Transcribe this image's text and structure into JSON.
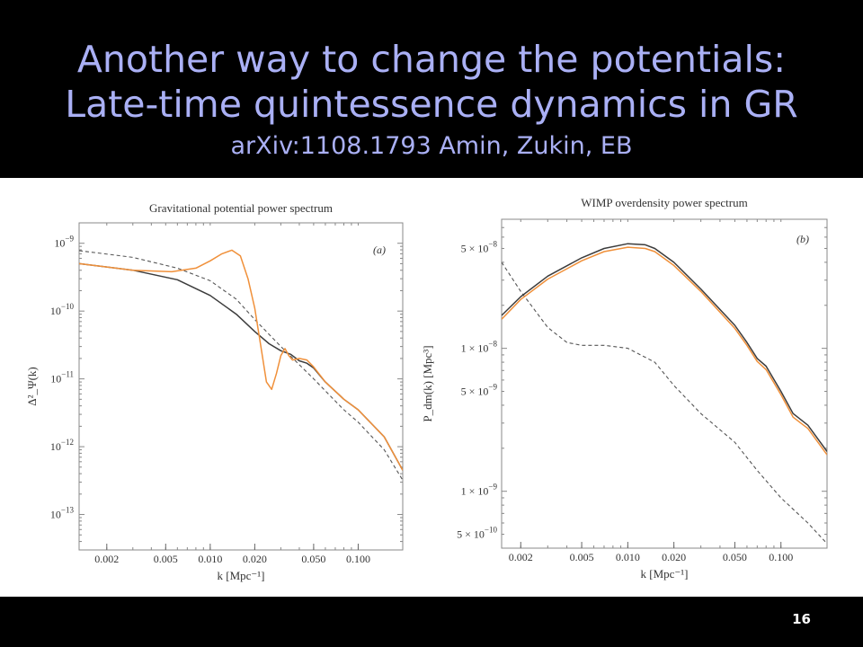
{
  "slide": {
    "title_line1": "Another way to change the potentials:",
    "title_line2": "Late-time quintessence dynamics in GR",
    "subtitle": "arXiv:1108.1793 Amin, Zukin, EB",
    "page_number": "16"
  },
  "colors": {
    "background": "#000000",
    "title": "#aab0f5",
    "orange": "#f0903a",
    "dark": "#3c3c3c"
  },
  "chart_data": [
    {
      "type": "line",
      "title": "Gravitational potential power spectrum",
      "panel_label": "(a)",
      "xlabel": "k [Mpc⁻¹]",
      "ylabel": "Δ²_Ψ(k)",
      "xscale": "log",
      "yscale": "log",
      "xlim": [
        0.0013,
        0.2
      ],
      "ylim": [
        3e-14,
        2e-09
      ],
      "xticks": [
        0.002,
        0.005,
        0.01,
        0.02,
        0.05,
        0.1
      ],
      "xtick_labels": [
        "0.002",
        "0.005",
        "0.010",
        "0.020",
        "0.050",
        "0.100"
      ],
      "yticks": [
        1e-09,
        1e-10,
        1e-11,
        1e-12,
        1e-13
      ],
      "ytick_labels": [
        {
          "base": "10",
          "exp": "−9"
        },
        {
          "base": "10",
          "exp": "−10"
        },
        {
          "base": "10",
          "exp": "−11"
        },
        {
          "base": "10",
          "exp": "−12"
        },
        {
          "base": "10",
          "exp": "−13"
        }
      ],
      "series": [
        {
          "style": "dashed",
          "color": "#555555",
          "x": [
            0.0013,
            0.003,
            0.006,
            0.01,
            0.015,
            0.02,
            0.03,
            0.05,
            0.08,
            0.1,
            0.15,
            0.2
          ],
          "y": [
            7.8e-10,
            6.2e-10,
            4.3e-10,
            2.8e-10,
            1.5e-10,
            7.5e-11,
            3e-11,
            1e-11,
            3.5e-12,
            2.3e-12,
            9e-13,
            3.2e-13
          ]
        },
        {
          "style": "solid",
          "color": "#3c3c3c",
          "x": [
            0.0013,
            0.003,
            0.006,
            0.01,
            0.015,
            0.02,
            0.025,
            0.03,
            0.035,
            0.04,
            0.045,
            0.05,
            0.06,
            0.08,
            0.1,
            0.15,
            0.2
          ],
          "y": [
            5e-10,
            4e-10,
            2.9e-10,
            1.7e-10,
            9e-11,
            5e-11,
            3.3e-11,
            2.6e-11,
            2.3e-11,
            1.85e-11,
            1.7e-11,
            1.45e-11,
            9e-12,
            5e-12,
            3.5e-12,
            1.4e-12,
            4.5e-13
          ]
        },
        {
          "style": "solid",
          "color": "#f0903a",
          "x": [
            0.0013,
            0.003,
            0.0055,
            0.008,
            0.01,
            0.012,
            0.014,
            0.016,
            0.018,
            0.02,
            0.022,
            0.024,
            0.026,
            0.028,
            0.03,
            0.032,
            0.034,
            0.036,
            0.04,
            0.045,
            0.05,
            0.06,
            0.08,
            0.1,
            0.15,
            0.2
          ],
          "y": [
            5e-10,
            4e-10,
            3.8e-10,
            4.3e-10,
            5.5e-10,
            7e-10,
            7.9e-10,
            6.5e-10,
            3e-10,
            1.1e-10,
            3e-11,
            9e-12,
            7e-12,
            1.2e-11,
            2.2e-11,
            2.8e-11,
            2.2e-11,
            1.9e-11,
            2e-11,
            1.9e-11,
            1.5e-11,
            9e-12,
            5e-12,
            3.5e-12,
            1.4e-12,
            4.5e-13
          ]
        }
      ]
    },
    {
      "type": "line",
      "title": "WIMP overdensity power spectrum",
      "panel_label": "(b)",
      "xlabel": "k [Mpc⁻¹]",
      "ylabel": "P_dm(k) [Mpc³]",
      "xscale": "log",
      "yscale": "log",
      "xlim": [
        0.0015,
        0.2
      ],
      "ylim": [
        4e-10,
        8e-08
      ],
      "xticks": [
        0.002,
        0.005,
        0.01,
        0.02,
        0.05,
        0.1
      ],
      "xtick_labels": [
        "0.002",
        "0.005",
        "0.010",
        "0.020",
        "0.050",
        "0.100"
      ],
      "yticks": [
        5e-08,
        1e-08,
        5e-09,
        1e-09,
        5e-10
      ],
      "ytick_labels": [
        {
          "base": "5 × 10",
          "exp": "−8"
        },
        {
          "base": "1 × 10",
          "exp": "−8"
        },
        {
          "base": "5 × 10",
          "exp": "−9"
        },
        {
          "base": "1 × 10",
          "exp": "−9"
        },
        {
          "base": "5 × 10",
          "exp": "−10"
        }
      ],
      "series": [
        {
          "style": "dashed",
          "color": "#555555",
          "x": [
            0.0015,
            0.002,
            0.003,
            0.004,
            0.005,
            0.007,
            0.01,
            0.015,
            0.02,
            0.03,
            0.05,
            0.07,
            0.1,
            0.15,
            0.2
          ],
          "y": [
            4e-08,
            2.5e-08,
            1.4e-08,
            1.1e-08,
            1.05e-08,
            1.05e-08,
            1e-08,
            8e-09,
            5.5e-09,
            3.5e-09,
            2.2e-09,
            1.4e-09,
            9e-10,
            6e-10,
            4.3e-10
          ]
        },
        {
          "style": "solid",
          "color": "#3c3c3c",
          "x": [
            0.0015,
            0.002,
            0.003,
            0.005,
            0.007,
            0.01,
            0.013,
            0.015,
            0.02,
            0.03,
            0.05,
            0.06,
            0.07,
            0.08,
            0.1,
            0.12,
            0.15,
            0.2
          ],
          "y": [
            1.7e-08,
            2.3e-08,
            3.2e-08,
            4.3e-08,
            5e-08,
            5.4e-08,
            5.3e-08,
            5e-08,
            4e-08,
            2.6e-08,
            1.45e-08,
            1.1e-08,
            8.5e-09,
            7.5e-09,
            5e-09,
            3.5e-09,
            2.9e-09,
            1.9e-09
          ]
        },
        {
          "style": "solid",
          "color": "#f0903a",
          "x": [
            0.0015,
            0.002,
            0.003,
            0.005,
            0.007,
            0.01,
            0.013,
            0.015,
            0.02,
            0.03,
            0.05,
            0.06,
            0.07,
            0.08,
            0.1,
            0.12,
            0.15,
            0.2
          ],
          "y": [
            1.6e-08,
            2.2e-08,
            3.05e-08,
            4.1e-08,
            4.75e-08,
            5.1e-08,
            5e-08,
            4.75e-08,
            3.8e-08,
            2.5e-08,
            1.38e-08,
            1.05e-08,
            8.1e-09,
            7.1e-09,
            4.75e-09,
            3.3e-09,
            2.75e-09,
            1.8e-09
          ]
        }
      ]
    }
  ]
}
